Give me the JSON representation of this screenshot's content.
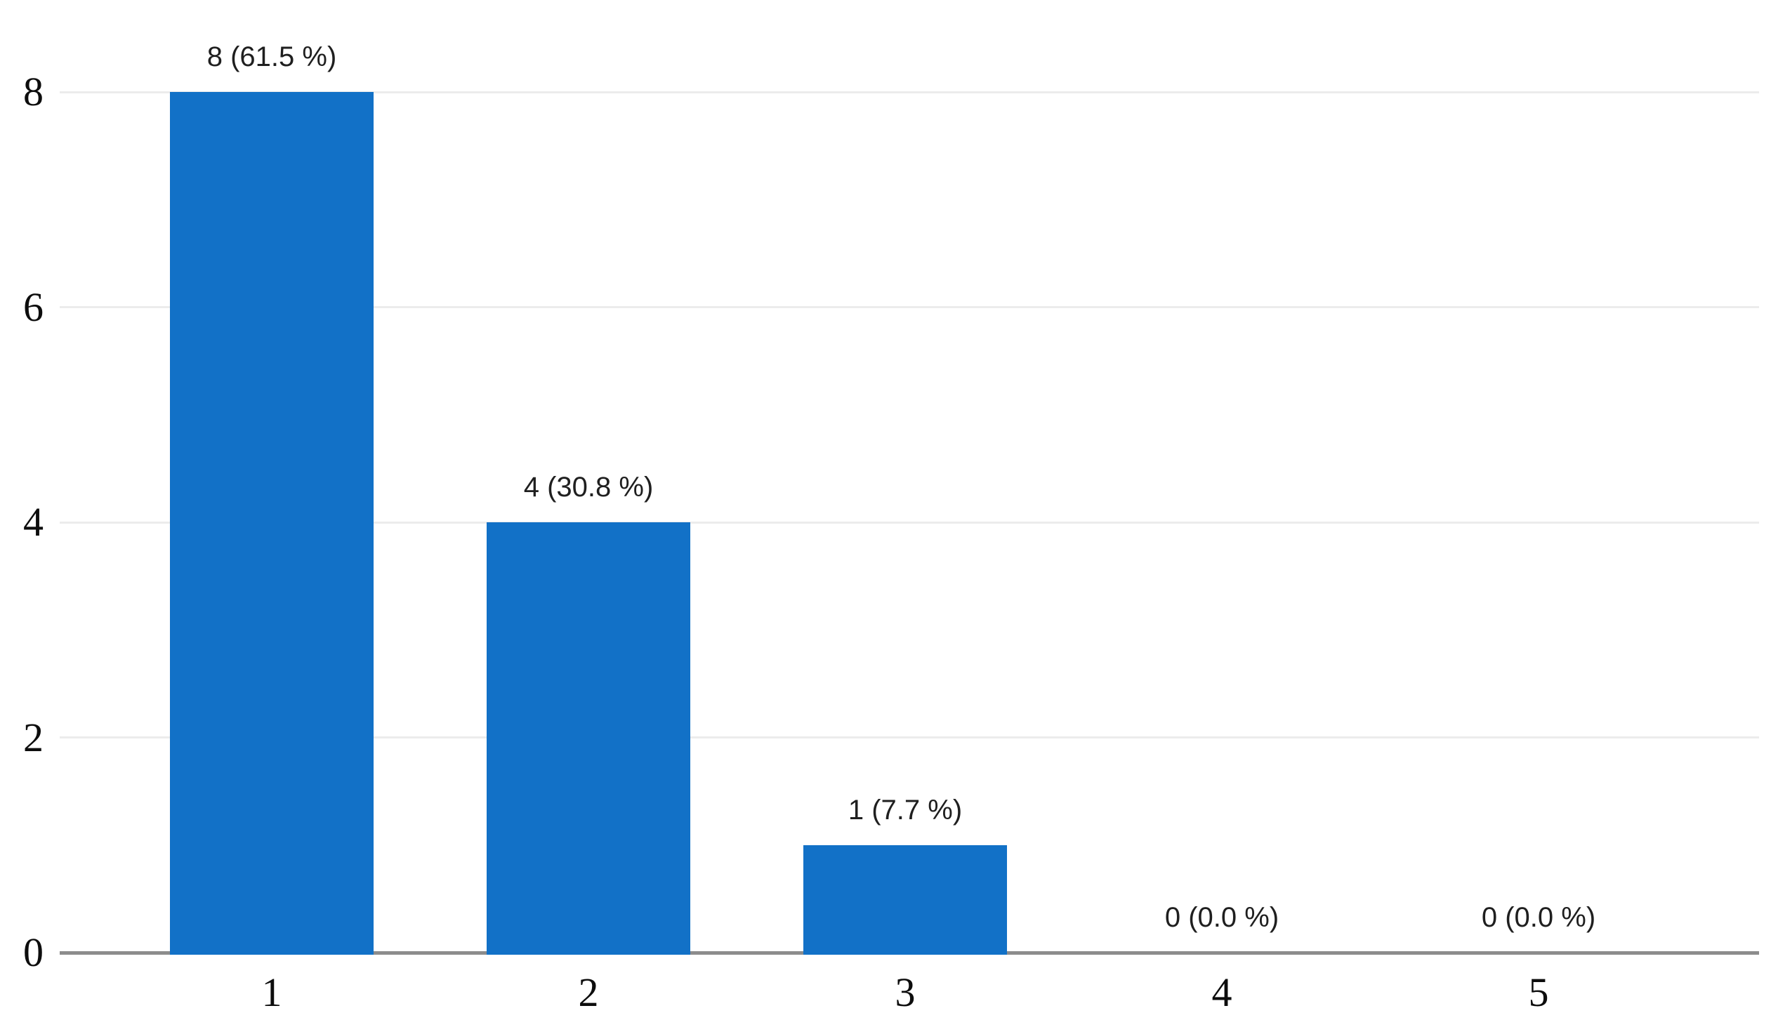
{
  "chart_data": {
    "type": "bar",
    "title": "",
    "xlabel": "",
    "ylabel": "",
    "categories": [
      "1",
      "2",
      "3",
      "4",
      "5"
    ],
    "values": [
      8,
      4,
      1,
      0,
      0
    ],
    "percentages": [
      61.5,
      30.8,
      7.7,
      0.0,
      0.0
    ],
    "value_labels": [
      "8 (61.5 %)",
      "4 (30.8 %)",
      "1 (7.7 %)",
      "0 (0.0 %)",
      "0 (0.0 %)"
    ],
    "yticks": [
      0,
      2,
      4,
      6,
      8
    ],
    "ylim": [
      0,
      8
    ],
    "grid": "horizontal gridlines on",
    "legend": "none",
    "colors": {
      "bar": "#1271c7",
      "gridline": "#ececec",
      "axis_line": "#8c8c8c",
      "tick_label": "#0d0d0d",
      "value_label": "#1f1f1f",
      "background": "#ffffff"
    }
  }
}
